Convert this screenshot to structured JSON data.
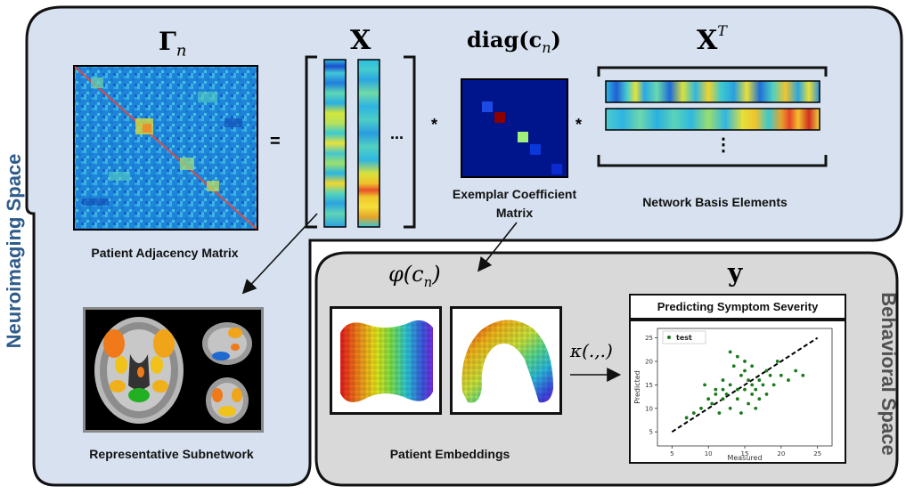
{
  "colors": {
    "neuro_bg": "#d7e1f0",
    "behavior_bg": "#d9d9d9",
    "accent_text": "#2e5b8a",
    "behavior_text": "#505050",
    "matrix_dark": "#00148c"
  },
  "neuro": {
    "side_label": "Neuroimaging Space",
    "gamma_label": "Γ",
    "gamma_sub": "n",
    "x_label": "X",
    "diag_label": "diag(c",
    "diag_sub": "n",
    "diag_close": ")",
    "xt_label": "X",
    "xt_sup": "T",
    "equals": "=",
    "ellipsis": "...",
    "star": "*",
    "vdots": "⋮",
    "adjacency_caption": "Patient Adjacency Matrix",
    "coefficient_caption_1": "Exemplar Coefficient",
    "coefficient_caption_2": "Matrix",
    "basis_caption": "Network Basis Elements",
    "subnetwork_caption": "Representative Subnetwork"
  },
  "behavior": {
    "side_label": "Behavioral Space",
    "phi_label": "φ(c",
    "phi_sub": "n",
    "phi_close": ")",
    "y_label": "y",
    "kappa_label": "κ(.,.)",
    "embeddings_caption": "Patient Embeddings",
    "plot_title": "Predicting Symptom Severity"
  },
  "chart_data": {
    "type": "scatter",
    "title": "Predicting Symptom Severity",
    "xlabel": "Measured",
    "ylabel": "Predicted",
    "xlim": [
      3,
      27
    ],
    "ylim": [
      2,
      27
    ],
    "xticks": [
      5,
      10,
      15,
      20,
      25
    ],
    "yticks": [
      5,
      10,
      15,
      20,
      25
    ],
    "legend": "test",
    "legend_position": "top-left",
    "marker_color": "#1a7a1a",
    "fit_line": {
      "x": [
        5,
        25
      ],
      "y": [
        5,
        25
      ],
      "style": "dashed"
    },
    "series": [
      {
        "name": "test",
        "points": [
          [
            7,
            8
          ],
          [
            8,
            9
          ],
          [
            9,
            10
          ],
          [
            9.5,
            15
          ],
          [
            10,
            12
          ],
          [
            10.5,
            11
          ],
          [
            11,
            14
          ],
          [
            11.5,
            9
          ],
          [
            12,
            12
          ],
          [
            12,
            16
          ],
          [
            12.5,
            13
          ],
          [
            13,
            10
          ],
          [
            13,
            15
          ],
          [
            13.5,
            19
          ],
          [
            14,
            21
          ],
          [
            14,
            12
          ],
          [
            14.5,
            17
          ],
          [
            14.5,
            9
          ],
          [
            15,
            14
          ],
          [
            15,
            18
          ],
          [
            15.5,
            11
          ],
          [
            15.5,
            16
          ],
          [
            16,
            13
          ],
          [
            16,
            19
          ],
          [
            16.5,
            14
          ],
          [
            16.5,
            10
          ],
          [
            17,
            16
          ],
          [
            17,
            12
          ],
          [
            17.5,
            15
          ],
          [
            18,
            18
          ],
          [
            18,
            13
          ],
          [
            18.5,
            17
          ],
          [
            19,
            15
          ],
          [
            19.5,
            20
          ],
          [
            20,
            17
          ],
          [
            21,
            16
          ],
          [
            22,
            18
          ],
          [
            23,
            17
          ],
          [
            13,
            22
          ],
          [
            15,
            20
          ],
          [
            14,
            14
          ],
          [
            12,
            14
          ],
          [
            11,
            13
          ],
          [
            16,
            15
          ]
        ]
      }
    ]
  }
}
